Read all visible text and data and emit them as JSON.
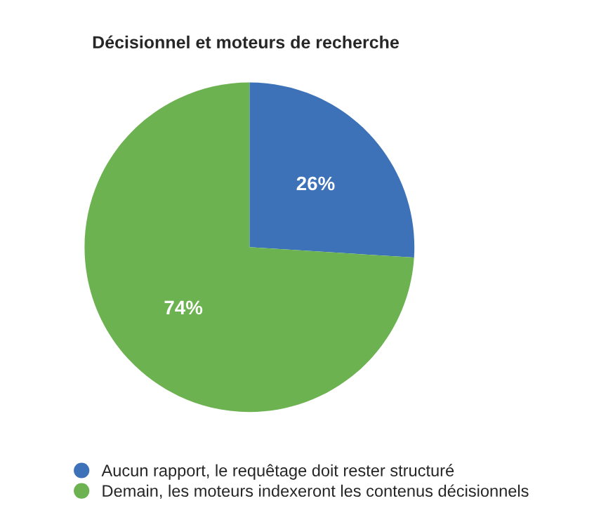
{
  "chart_data": {
    "type": "pie",
    "title": "Décisionnel et moteurs de recherche",
    "categories": [
      "Aucun rapport, le requêtage doit rester structuré",
      "Demain, les moteurs indexeront les contenus décisionnels"
    ],
    "values": [
      26,
      74
    ],
    "value_labels": [
      "26%",
      "74%"
    ],
    "colors": [
      "#3d72b8",
      "#6cb251"
    ],
    "legend": "bottom"
  }
}
